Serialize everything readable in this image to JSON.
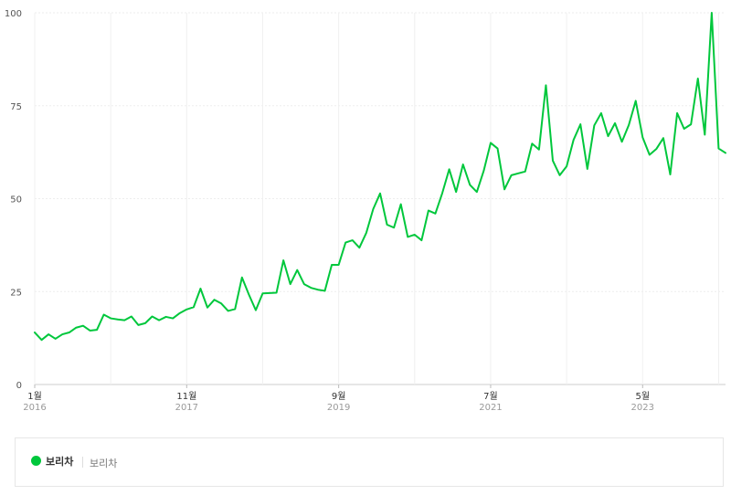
{
  "chart_data": {
    "type": "line",
    "ylim": [
      0,
      100
    ],
    "yticks": [
      "0",
      "25",
      "50",
      "75",
      "100"
    ],
    "x_start": "2016-01",
    "x_step": "month",
    "x_ticks": [
      {
        "month": "1월",
        "year": "2016",
        "index": 0
      },
      {
        "month": "11월",
        "year": "2017",
        "index": 22
      },
      {
        "month": "9월",
        "year": "2019",
        "index": 44
      },
      {
        "month": "7월",
        "year": "2021",
        "index": 66
      },
      {
        "month": "5월",
        "year": "2023",
        "index": 88
      }
    ],
    "grid": true,
    "series": [
      {
        "name": "보리차",
        "color": "#00c73c",
        "values": [
          14.0,
          12.0,
          13.5,
          12.3,
          13.5,
          14.0,
          15.3,
          15.8,
          14.5,
          14.7,
          18.8,
          17.8,
          17.5,
          17.3,
          18.3,
          16.0,
          16.5,
          18.3,
          17.3,
          18.2,
          17.8,
          19.2,
          20.2,
          20.8,
          25.8,
          20.7,
          22.8,
          21.8,
          19.8,
          20.3,
          28.8,
          24.2,
          20.0,
          24.5,
          24.6,
          24.7,
          33.4,
          27.0,
          30.8,
          27.0,
          26.0,
          25.5,
          25.2,
          32.2,
          32.2,
          38.2,
          38.8,
          36.8,
          40.8,
          47.2,
          51.4,
          43.0,
          42.2,
          48.5,
          39.7,
          40.3,
          38.8,
          46.8,
          46.0,
          51.5,
          57.9,
          51.8,
          59.2,
          53.7,
          51.8,
          57.5,
          65.0,
          63.5,
          52.5,
          56.3,
          56.8,
          57.3,
          64.8,
          63.2,
          80.5,
          60.2,
          56.3,
          58.7,
          65.8,
          70.0,
          58.0,
          69.7,
          73.0,
          66.8,
          70.3,
          65.3,
          69.8,
          76.3,
          66.5,
          61.8,
          63.4,
          66.3,
          56.5,
          73.0,
          68.8,
          70.0,
          82.3,
          67.2,
          100.0,
          63.5,
          62.3
        ]
      }
    ]
  },
  "legend": {
    "series_name": "보리차",
    "keyword": "보리차",
    "color": "#00c73c"
  }
}
